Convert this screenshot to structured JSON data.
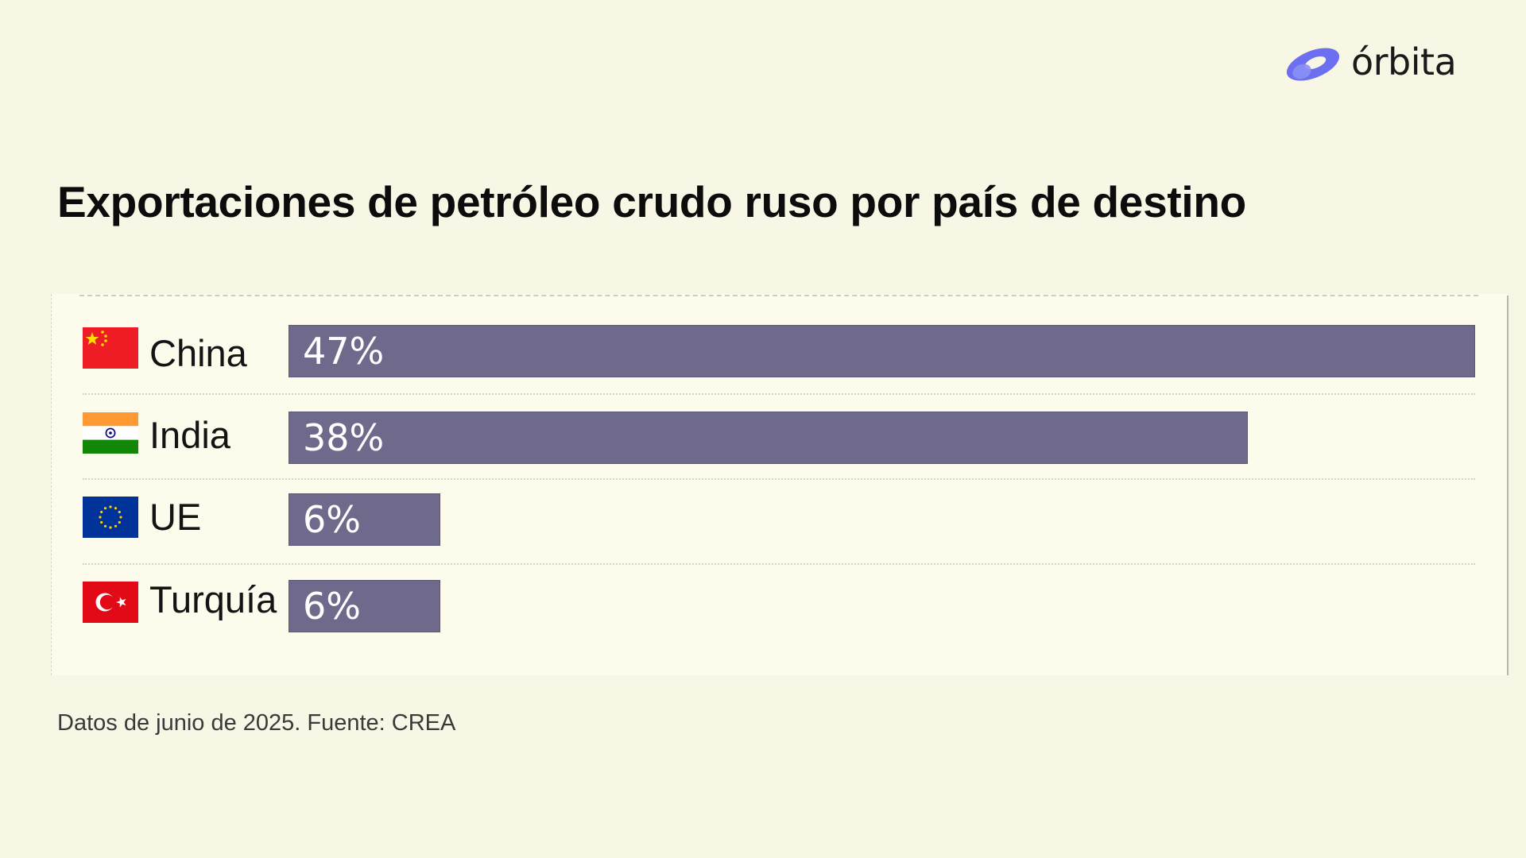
{
  "brand": {
    "name": "órbita",
    "accent": "#6b6ff0"
  },
  "chart_data": {
    "type": "bar",
    "orientation": "horizontal",
    "title": "Exportaciones de petróleo crudo ruso por país de destino",
    "categories": [
      "China",
      "India",
      "UE",
      "Turquía"
    ],
    "values": [
      47,
      38,
      6,
      6
    ],
    "value_labels": [
      "47%",
      "38%",
      "6%",
      "6%"
    ],
    "unit": "%",
    "xlim": [
      0,
      47
    ],
    "bar_color": "#6f6a8c",
    "flags": [
      "china-flag-icon",
      "india-flag-icon",
      "eu-flag-icon",
      "turkey-flag-icon"
    ],
    "footnote": "Datos de junio de 2025. Fuente: CREA"
  }
}
